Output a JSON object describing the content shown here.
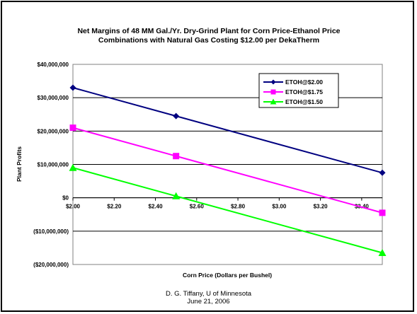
{
  "slide": {
    "footer_line1": "D. G. Tiffany, U of Minnesota",
    "footer_line2": "June 21, 2006"
  },
  "chart_data": {
    "type": "line",
    "title_line1": "Net Margins of 48 MM Gal./Yr. Dry-Grind Plant for Corn Price-Ethanol Price",
    "title_line2": "Combinations with Natural Gas Costing $12.00 per DekaTherm",
    "xlabel": "Corn Price (Dollars per Bushel)",
    "ylabel": "Plant Profits",
    "x": [
      2.0,
      2.5,
      3.5
    ],
    "xlim": [
      2.0,
      3.5
    ],
    "ylim": [
      -20000000,
      40000000
    ],
    "x_ticks": [
      2.0,
      2.2,
      2.4,
      2.6,
      2.8,
      3.0,
      3.2,
      3.4
    ],
    "x_tick_labels": [
      "$2.00",
      "$2.20",
      "$2.40",
      "$2.60",
      "$2.80",
      "$3.00",
      "$3.20",
      "$3.40"
    ],
    "y_ticks": [
      -20000000,
      -10000000,
      0,
      10000000,
      20000000,
      30000000,
      40000000
    ],
    "y_tick_labels": [
      "($20,000,000)",
      "($10,000,000)",
      "$0",
      "$10,000,000",
      "$20,000,000",
      "$30,000,000",
      "$40,000,000"
    ],
    "grid": true,
    "legend_position": "top-right",
    "series": [
      {
        "name": "ETOH@$2.00",
        "values": [
          33000000,
          24500000,
          7500000
        ],
        "color": "#000080",
        "marker": "diamond"
      },
      {
        "name": "ETOH@$1.75",
        "values": [
          21000000,
          12500000,
          -4500000
        ],
        "color": "#ff00ff",
        "marker": "square"
      },
      {
        "name": "ETOH@$1.50",
        "values": [
          9000000,
          500000,
          -16500000
        ],
        "color": "#00ff00",
        "marker": "triangle"
      }
    ]
  }
}
